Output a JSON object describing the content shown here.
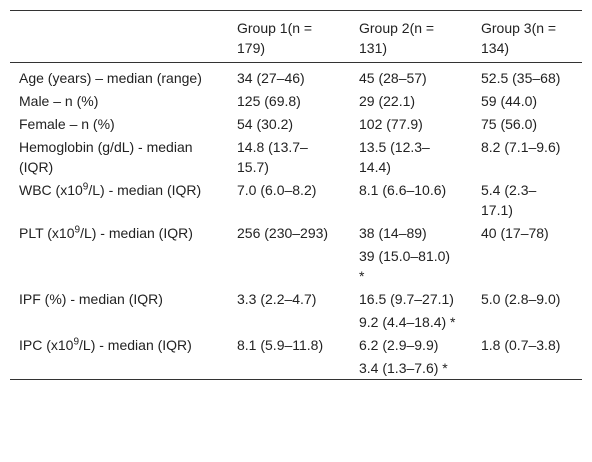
{
  "table": {
    "header": [
      "Group 1(n = 179)",
      "Group 2(n = 131)",
      "Group 3(n = 134)"
    ],
    "rows": [
      [
        {
          "text": "Age (years) – median (range)"
        },
        "34 (27–46)",
        "45 (28–57)",
        "52.5 (35–68)"
      ],
      [
        {
          "text": "Male – n (%)"
        },
        "125 (69.8)",
        "29 (22.1)",
        "59 (44.0)"
      ],
      [
        {
          "text": "Female – n (%)"
        },
        "54 (30.2)",
        "102 (77.9)",
        "75 (56.0)"
      ],
      [
        {
          "text": "Hemoglobin (g/dL) - median (IQR)"
        },
        "14.8 (13.7–15.7)",
        "13.5 (12.3–14.4)",
        "8.2 (7.1–9.6)"
      ],
      [
        {
          "text": "WBC (x10",
          "sup": "9",
          "rest": "/L) - median (IQR)"
        },
        "7.0 (6.0–8.2)",
        "8.1 (6.6–10.6)",
        "5.4 (2.3–17.1)"
      ],
      [
        {
          "text": "PLT (x10",
          "sup": "9",
          "rest": "/L) - median (IQR)"
        },
        "256 (230–293)",
        "38 (14–89)",
        "40 (17–78)"
      ],
      [
        null,
        null,
        "39 (15.0–81.0) *",
        null
      ],
      [
        {
          "text": "IPF (%) - median (IQR)"
        },
        "3.3 (2.2–4.7)",
        "16.5 (9.7–27.1)",
        "5.0 (2.8–9.0)"
      ],
      [
        null,
        null,
        "9.2 (4.4–18.4) *",
        null
      ],
      [
        {
          "text": "IPC (x10",
          "sup": "9",
          "rest": "/L) - median (IQR)"
        },
        "8.1 (5.9–11.8)",
        "6.2 (2.9–9.9)",
        "1.8 (0.7–3.8)"
      ],
      [
        null,
        null,
        "3.4 (1.3–7.6) *",
        null
      ]
    ]
  }
}
